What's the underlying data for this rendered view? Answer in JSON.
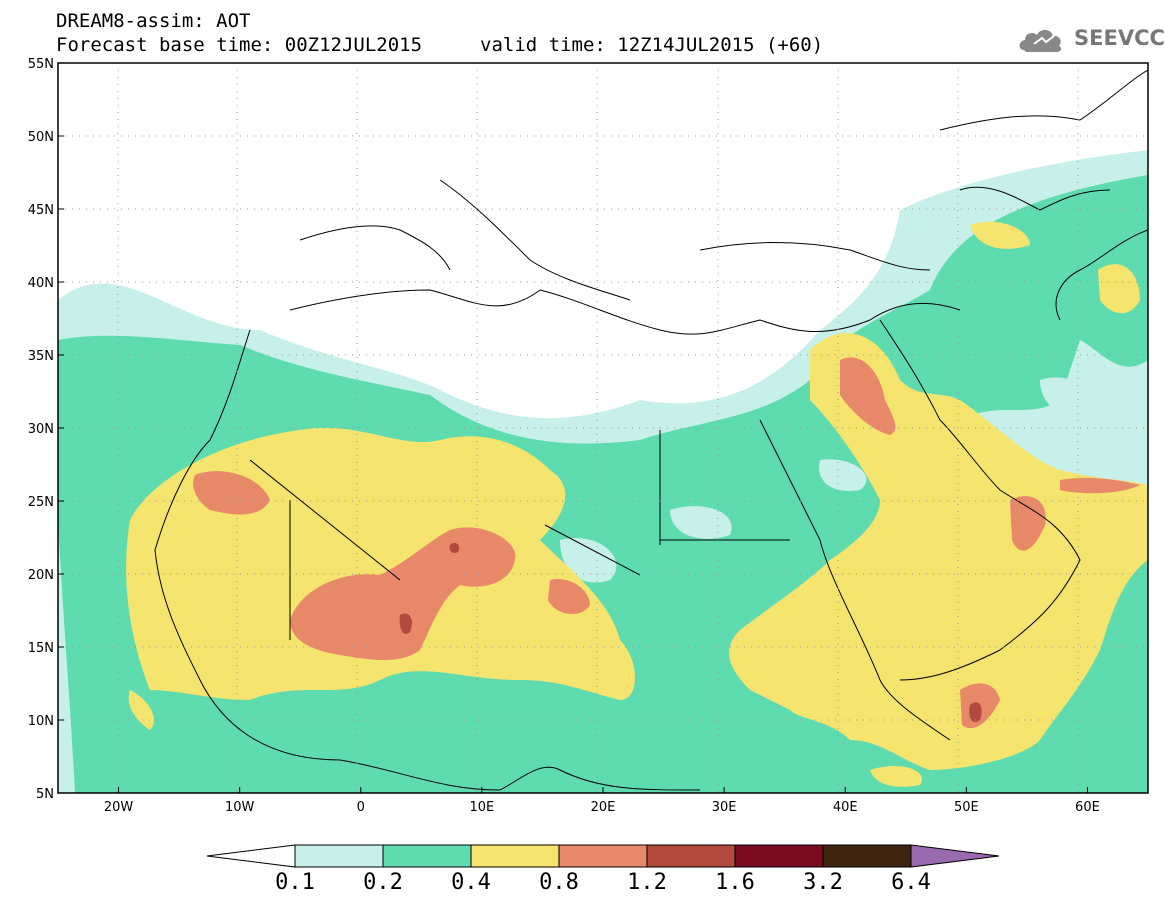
{
  "title": {
    "line1": "DREAM8-assim: AOT",
    "line2": "Forecast base time: 00Z12JUL2015",
    "valid": "valid time: 12Z14JUL2015 (+60)"
  },
  "logo": {
    "text": "SEEVCCC",
    "icon": "cloud-logo-icon"
  },
  "map": {
    "lon_range": [
      -25,
      65
    ],
    "lat_range": [
      5,
      55
    ],
    "lat_ticks": [
      "55N",
      "50N",
      "45N",
      "40N",
      "35N",
      "30N",
      "25N",
      "20N",
      "15N",
      "10N",
      "5N"
    ],
    "lon_ticks": [
      "20W",
      "10W",
      "0",
      "10E",
      "20E",
      "30E",
      "40E",
      "50E",
      "60E"
    ]
  },
  "colorbar": {
    "labels": [
      "0.1",
      "0.2",
      "0.4",
      "0.8",
      "1.2",
      "1.6",
      "3.2",
      "6.4"
    ],
    "colors": [
      "#ffffff",
      "#c8f0ea",
      "#5fdbb0",
      "#f5e46e",
      "#e8896a",
      "#b14a3c",
      "#7a0a20",
      "#3f2410",
      "#9a6ab0"
    ]
  }
}
